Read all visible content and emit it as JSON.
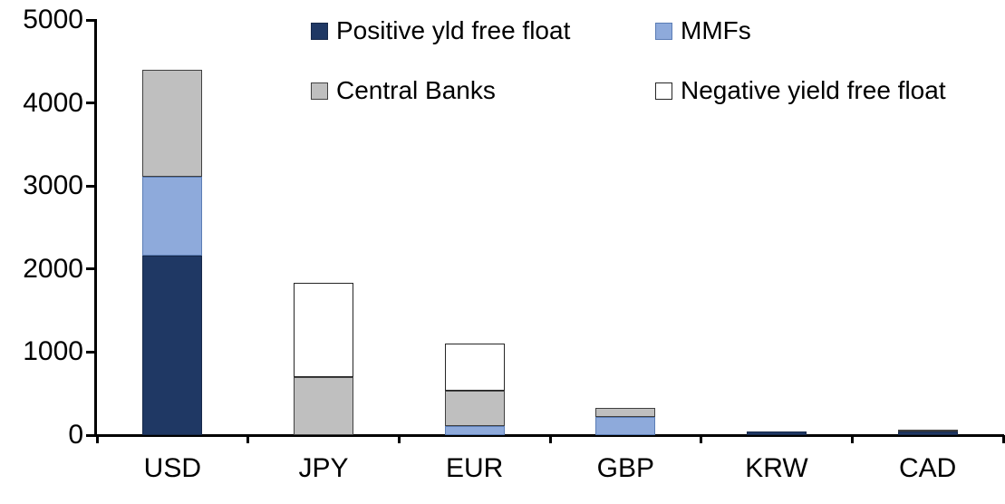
{
  "chart_data": {
    "type": "bar",
    "subtype": "stacked",
    "title": "",
    "xlabel": "",
    "ylabel": "",
    "categories": [
      "USD",
      "JPY",
      "EUR",
      "GBP",
      "KRW",
      "CAD"
    ],
    "series": [
      {
        "name": "Positive yld free float",
        "color": "#1F3864",
        "border_color": "#17294A",
        "values": [
          2160,
          0,
          0,
          0,
          45,
          40
        ]
      },
      {
        "name": "MMFs",
        "color": "#8EAADB",
        "border_color": "#5B7DB5",
        "values": [
          950,
          0,
          110,
          215,
          0,
          0
        ]
      },
      {
        "name": "Central Banks",
        "color": "#BFBFBF",
        "border_color": "#404040",
        "values": [
          1290,
          700,
          420,
          110,
          0,
          30
        ]
      },
      {
        "name": "Negative yield free float",
        "color": "#FFFFFF",
        "border_color": "#262626",
        "values": [
          0,
          1140,
          575,
          0,
          0,
          0
        ]
      }
    ],
    "totals": [
      4400,
      1840,
      1105,
      325,
      45,
      70
    ],
    "ylim": [
      0,
      5000
    ],
    "yticks": [
      0,
      1000,
      2000,
      3000,
      4000,
      5000
    ],
    "grid": false,
    "legend_position": "top",
    "axis_color": "#000000",
    "text_color": "#000000",
    "background_color": "#FFFFFF"
  }
}
